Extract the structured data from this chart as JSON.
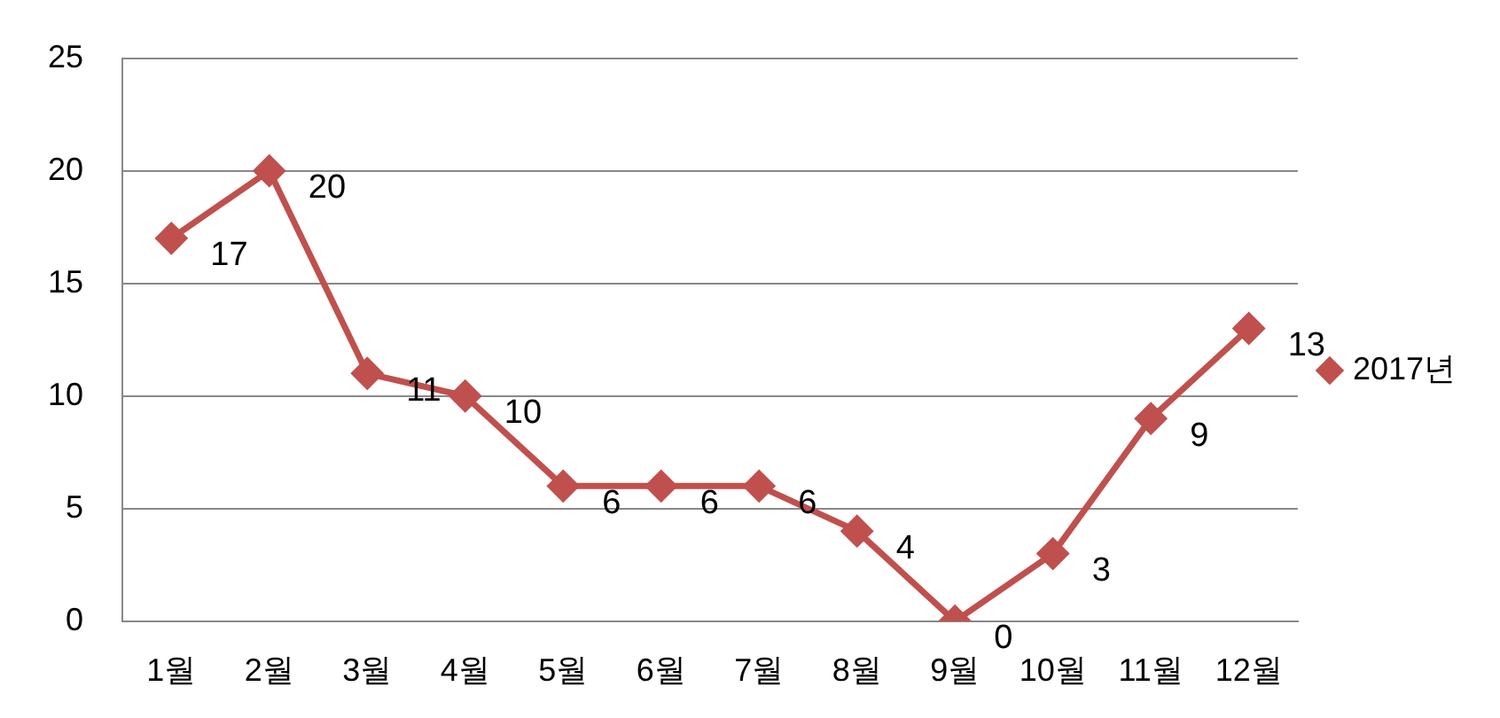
{
  "chart_data": {
    "type": "line",
    "categories": [
      "1월",
      "2월",
      "3월",
      "4월",
      "5월",
      "6월",
      "7월",
      "8월",
      "9월",
      "10월",
      "11월",
      "12월"
    ],
    "series": [
      {
        "name": "2017년",
        "color": "#c0504d",
        "values": [
          17,
          20,
          11,
          10,
          6,
          6,
          6,
          4,
          0,
          3,
          9,
          13
        ]
      }
    ],
    "ylim": [
      0,
      25
    ],
    "yticks": [
      0,
      5,
      10,
      15,
      20,
      25
    ],
    "grid": "y",
    "legend": "right",
    "marker": "diamond",
    "line_style": "solid",
    "data_labels": true
  }
}
